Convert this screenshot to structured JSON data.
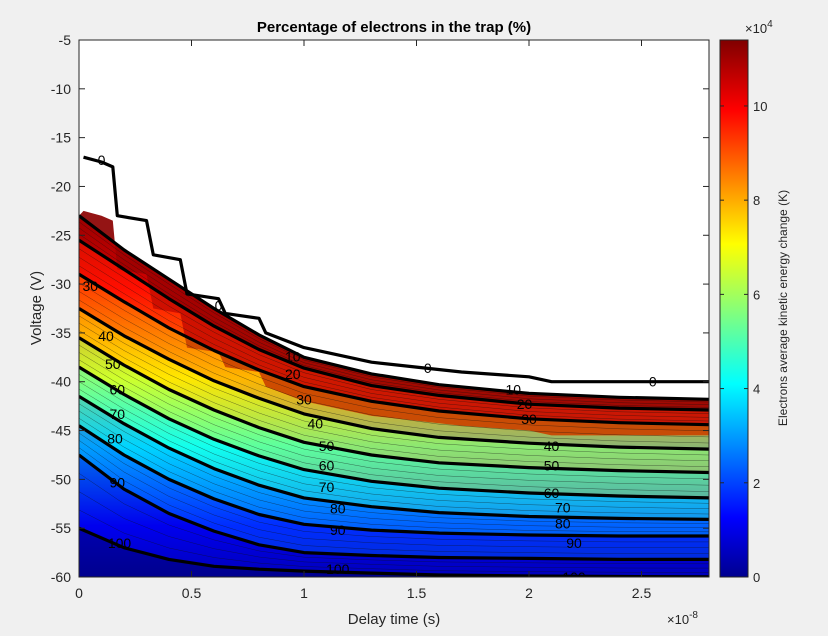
{
  "chart_data": {
    "type": "contour",
    "title": "Percentage of electrons in the trap (%)",
    "xlabel": "Delay time (s)",
    "ylabel": "Voltage (V)",
    "x_multiplier_label": "×10",
    "x_multiplier_exponent": "-8",
    "xlim": [
      0,
      2.8
    ],
    "ylim": [
      -60,
      -5
    ],
    "x_ticks": [
      0,
      0.5,
      1,
      1.5,
      2,
      2.5
    ],
    "x_tick_labels": [
      "0",
      "0.5",
      "1",
      "1.5",
      "2",
      "2.5"
    ],
    "y_ticks": [
      -5,
      -10,
      -15,
      -20,
      -25,
      -30,
      -35,
      -40,
      -45,
      -50,
      -55,
      -60
    ],
    "y_tick_labels": [
      "-5",
      "-10",
      "-15",
      "-20",
      "-25",
      "-30",
      "-35",
      "-40",
      "-45",
      "-50",
      "-55",
      "-60"
    ],
    "colorbar": {
      "label": "Electrons average kinetic energy change (K)",
      "multiplier_label": "×10",
      "multiplier_exponent": "4",
      "lim": [
        0,
        11.4
      ],
      "ticks": [
        0,
        2,
        4,
        6,
        8,
        10
      ],
      "tick_labels": [
        "0",
        "2",
        "4",
        "6",
        "8",
        "10"
      ],
      "colormap": "jet"
    },
    "contour_lines": [
      {
        "level": "0",
        "points": [
          [
            0.02,
            -17
          ],
          [
            0.1,
            -17.5
          ],
          [
            0.15,
            -18
          ],
          [
            0.17,
            -23
          ],
          [
            0.3,
            -23.5
          ],
          [
            0.33,
            -27
          ],
          [
            0.45,
            -27.5
          ],
          [
            0.48,
            -31
          ],
          [
            0.62,
            -31.5
          ],
          [
            0.65,
            -33
          ],
          [
            0.8,
            -33.5
          ],
          [
            0.83,
            -35
          ],
          [
            1.0,
            -36.5
          ],
          [
            1.3,
            -38
          ],
          [
            1.5,
            -38.5
          ],
          [
            1.7,
            -39
          ],
          [
            2.0,
            -39.5
          ],
          [
            2.1,
            -40
          ],
          [
            2.8,
            -40
          ]
        ],
        "labels": [
          [
            0.1,
            -17.3
          ],
          [
            0.62,
            -32.2
          ],
          [
            1.55,
            -38.6
          ],
          [
            2.55,
            -40
          ]
        ]
      },
      {
        "level": "10",
        "points": [
          [
            0,
            -23
          ],
          [
            0.2,
            -26.5
          ],
          [
            0.4,
            -29.5
          ],
          [
            0.6,
            -32.5
          ],
          [
            0.8,
            -35.2
          ],
          [
            1.0,
            -37.5
          ],
          [
            1.3,
            -39.2
          ],
          [
            1.6,
            -40.3
          ],
          [
            2.0,
            -41.2
          ],
          [
            2.4,
            -41.6
          ],
          [
            2.8,
            -41.8
          ]
        ],
        "labels": [
          [
            0.95,
            -37.4
          ],
          [
            1.93,
            -40.8
          ]
        ]
      },
      {
        "level": "20",
        "points": [
          [
            0,
            -25.5
          ],
          [
            0.2,
            -28.5
          ],
          [
            0.4,
            -31.5
          ],
          [
            0.6,
            -34.3
          ],
          [
            0.8,
            -36.7
          ],
          [
            1.0,
            -38.6
          ],
          [
            1.3,
            -40.4
          ],
          [
            1.6,
            -41.4
          ],
          [
            2.0,
            -42.3
          ],
          [
            2.4,
            -42.7
          ],
          [
            2.8,
            -42.9
          ]
        ],
        "labels": [
          [
            0.95,
            -39.2
          ],
          [
            1.98,
            -42.3
          ]
        ]
      },
      {
        "level": "30",
        "points": [
          [
            0,
            -29
          ],
          [
            0.2,
            -31.8
          ],
          [
            0.4,
            -34.5
          ],
          [
            0.6,
            -36.8
          ],
          [
            0.8,
            -38.8
          ],
          [
            1.0,
            -40.5
          ],
          [
            1.3,
            -42
          ],
          [
            1.6,
            -43
          ],
          [
            2.0,
            -43.8
          ],
          [
            2.4,
            -44.2
          ],
          [
            2.8,
            -44.4
          ]
        ],
        "labels": [
          [
            0.05,
            -30.2
          ],
          [
            1.0,
            -41.8
          ],
          [
            2.0,
            -43.8
          ]
        ]
      },
      {
        "level": "40",
        "points": [
          [
            0,
            -32.5
          ],
          [
            0.2,
            -35.3
          ],
          [
            0.4,
            -37.7
          ],
          [
            0.6,
            -39.9
          ],
          [
            0.8,
            -41.7
          ],
          [
            1.0,
            -43.3
          ],
          [
            1.3,
            -44.8
          ],
          [
            1.6,
            -45.7
          ],
          [
            2.0,
            -46.3
          ],
          [
            2.4,
            -46.7
          ],
          [
            2.8,
            -46.9
          ]
        ],
        "labels": [
          [
            0.12,
            -35.3
          ],
          [
            1.05,
            -44.3
          ],
          [
            2.1,
            -46.6
          ]
        ]
      },
      {
        "level": "50",
        "points": [
          [
            0,
            -35.5
          ],
          [
            0.2,
            -38.3
          ],
          [
            0.4,
            -40.8
          ],
          [
            0.6,
            -42.9
          ],
          [
            0.8,
            -44.7
          ],
          [
            1.0,
            -46.2
          ],
          [
            1.3,
            -47.5
          ],
          [
            1.6,
            -48.3
          ],
          [
            2.0,
            -48.8
          ],
          [
            2.4,
            -49.1
          ],
          [
            2.8,
            -49.3
          ]
        ],
        "labels": [
          [
            0.15,
            -38.2
          ],
          [
            1.1,
            -46.6
          ],
          [
            2.1,
            -48.6
          ]
        ]
      },
      {
        "level": "60",
        "points": [
          [
            0,
            -38.5
          ],
          [
            0.2,
            -41.3
          ],
          [
            0.4,
            -43.8
          ],
          [
            0.6,
            -45.9
          ],
          [
            0.8,
            -47.6
          ],
          [
            1.0,
            -49
          ],
          [
            1.3,
            -50.2
          ],
          [
            1.6,
            -50.9
          ],
          [
            2.0,
            -51.4
          ],
          [
            2.4,
            -51.7
          ],
          [
            2.8,
            -51.9
          ]
        ],
        "labels": [
          [
            0.17,
            -40.8
          ],
          [
            1.1,
            -48.6
          ],
          [
            2.1,
            -51.4
          ]
        ]
      },
      {
        "level": "70",
        "points": [
          [
            0,
            -41.5
          ],
          [
            0.2,
            -44.3
          ],
          [
            0.4,
            -46.8
          ],
          [
            0.6,
            -48.9
          ],
          [
            0.8,
            -50.6
          ],
          [
            1.0,
            -51.9
          ],
          [
            1.3,
            -52.8
          ],
          [
            1.6,
            -53.4
          ],
          [
            2.0,
            -53.8
          ],
          [
            2.4,
            -54
          ],
          [
            2.8,
            -54.1
          ]
        ],
        "labels": [
          [
            0.17,
            -43.3
          ],
          [
            1.1,
            -50.8
          ],
          [
            2.15,
            -52.9
          ]
        ]
      },
      {
        "level": "80",
        "points": [
          [
            0,
            -44.5
          ],
          [
            0.2,
            -47.5
          ],
          [
            0.4,
            -50
          ],
          [
            0.6,
            -52
          ],
          [
            0.8,
            -53.6
          ],
          [
            1.0,
            -54.6
          ],
          [
            1.3,
            -55.2
          ],
          [
            1.6,
            -55.5
          ],
          [
            2.0,
            -55.7
          ],
          [
            2.4,
            -55.8
          ],
          [
            2.8,
            -55.8
          ]
        ],
        "labels": [
          [
            0.16,
            -45.8
          ],
          [
            1.15,
            -53
          ],
          [
            2.15,
            -54.5
          ]
        ]
      },
      {
        "level": "90",
        "points": [
          [
            0,
            -47.5
          ],
          [
            0.2,
            -51
          ],
          [
            0.4,
            -53.5
          ],
          [
            0.6,
            -55.3
          ],
          [
            0.8,
            -56.7
          ],
          [
            1.0,
            -57.5
          ],
          [
            1.3,
            -57.8
          ],
          [
            1.6,
            -58
          ],
          [
            2.0,
            -58.1
          ],
          [
            2.4,
            -58.2
          ],
          [
            2.8,
            -58.2
          ]
        ],
        "labels": [
          [
            0.17,
            -50.3
          ],
          [
            1.15,
            -55.2
          ],
          [
            2.2,
            -56.5
          ]
        ]
      },
      {
        "level": "100",
        "points": [
          [
            0,
            -55
          ],
          [
            0.2,
            -57
          ],
          [
            0.4,
            -58.2
          ],
          [
            0.6,
            -58.9
          ],
          [
            0.8,
            -59.2
          ],
          [
            1.0,
            -59.4
          ],
          [
            1.3,
            -59.6
          ],
          [
            1.6,
            -59.8
          ],
          [
            2.0,
            -59.9
          ],
          [
            2.4,
            -59.95
          ],
          [
            2.8,
            -59.98
          ]
        ],
        "labels": [
          [
            0.18,
            -56.5
          ],
          [
            1.15,
            -59.2
          ],
          [
            2.2,
            -60
          ]
        ]
      }
    ]
  }
}
